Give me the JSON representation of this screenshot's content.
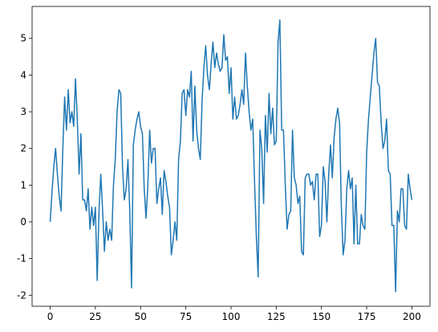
{
  "chart_data": {
    "type": "line",
    "color": "#1f77b4",
    "x": [
      0,
      1,
      2,
      3,
      4,
      5,
      6,
      7,
      8,
      9,
      10,
      11,
      12,
      13,
      14,
      15,
      16,
      17,
      18,
      19,
      20,
      21,
      22,
      23,
      24,
      25,
      26,
      27,
      28,
      29,
      30,
      31,
      32,
      33,
      34,
      35,
      36,
      37,
      38,
      39,
      40,
      41,
      42,
      43,
      44,
      45,
      46,
      47,
      48,
      49,
      50,
      51,
      52,
      53,
      54,
      55,
      56,
      57,
      58,
      59,
      60,
      61,
      62,
      63,
      64,
      65,
      66,
      67,
      68,
      69,
      70,
      71,
      72,
      73,
      74,
      75,
      76,
      77,
      78,
      79,
      80,
      81,
      82,
      83,
      84,
      85,
      86,
      87,
      88,
      89,
      90,
      91,
      92,
      93,
      94,
      95,
      96,
      97,
      98,
      99,
      100,
      101,
      102,
      103,
      104,
      105,
      106,
      107,
      108,
      109,
      110,
      111,
      112,
      113,
      114,
      115,
      116,
      117,
      118,
      119,
      120,
      121,
      122,
      123,
      124,
      125,
      126,
      127,
      128,
      129,
      130,
      131,
      132,
      133,
      134,
      135,
      136,
      137,
      138,
      139,
      140,
      141,
      142,
      143,
      144,
      145,
      146,
      147,
      148,
      149,
      150,
      151,
      152,
      153,
      154,
      155,
      156,
      157,
      158,
      159,
      160,
      161,
      162,
      163,
      164,
      165,
      166,
      167,
      168,
      169,
      170,
      171,
      172,
      173,
      174,
      175,
      176,
      177,
      178,
      179,
      180,
      181,
      182,
      183,
      184,
      185,
      186,
      187,
      188,
      189,
      190,
      191,
      192,
      193,
      194,
      195,
      196,
      197,
      198,
      199,
      200
    ],
    "values": [
      0,
      0.8,
      1.5,
      2.0,
      1.3,
      0.7,
      0.3,
      2.0,
      3.4,
      2.5,
      3.6,
      2.7,
      3.0,
      2.6,
      3.9,
      2.8,
      1.3,
      2.4,
      0.6,
      0.6,
      0.3,
      0.9,
      -0.2,
      0.4,
      -0.1,
      0.4,
      -1.6,
      0.3,
      1.3,
      0.3,
      -0.8,
      0.0,
      -0.5,
      -0.2,
      -0.5,
      1.0,
      1.7,
      3.0,
      3.6,
      3.5,
      1.5,
      0.6,
      0.9,
      1.7,
      0.3,
      -1.8,
      2.1,
      2.5,
      2.8,
      3.0,
      2.6,
      2.4,
      0.9,
      0.1,
      1.0,
      2.5,
      1.6,
      2.0,
      2.0,
      0.5,
      0.9,
      1.2,
      0.2,
      1.4,
      1.1,
      0.7,
      0.4,
      -0.9,
      -0.5,
      0.0,
      -0.5,
      1.7,
      2.2,
      3.5,
      3.6,
      2.9,
      3.6,
      3.4,
      4.1,
      2.2,
      3.7,
      2.5,
      2.0,
      1.7,
      3.3,
      4.2,
      4.8,
      4.0,
      3.6,
      4.3,
      4.9,
      4.2,
      4.6,
      4.3,
      4.1,
      4.2,
      5.1,
      4.4,
      4.5,
      3.5,
      4.2,
      2.8,
      3.4,
      2.8,
      2.9,
      3.2,
      3.6,
      3.2,
      4.6,
      3.7,
      3.0,
      2.5,
      2.8,
      1.1,
      -0.4,
      -1.5,
      2.5,
      2.0,
      0.5,
      2.9,
      1.9,
      3.5,
      2.4,
      3.1,
      2.1,
      2.2,
      4.9,
      5.5,
      2.5,
      2.5,
      1.0,
      -0.2,
      0.2,
      0.3,
      2.5,
      1.2,
      1.0,
      0.5,
      0.7,
      -0.8,
      -0.9,
      1.2,
      1.3,
      1.3,
      1.0,
      1.1,
      0.6,
      1.3,
      1.3,
      -0.4,
      -0.1,
      1.5,
      1.1,
      0.0,
      1.3,
      2.1,
      1.2,
      2.3,
      2.8,
      3.1,
      2.7,
      0.4,
      -0.9,
      -0.5,
      0.9,
      1.4,
      0.9,
      1.2,
      -0.6,
      1.0,
      -0.6,
      -0.6,
      0.2,
      -0.1,
      -0.2,
      1.9,
      2.8,
      3.4,
      4.0,
      4.6,
      5.0,
      3.8,
      3.7,
      2.7,
      2.0,
      2.2,
      2.8,
      1.4,
      1.3,
      -0.1,
      -0.1,
      -1.9,
      0.3,
      0.0,
      0.9,
      0.9,
      -0.1,
      -0.2,
      1.3,
      0.9,
      0.6
    ],
    "xlim": [
      -10,
      210
    ],
    "xticks": [
      0,
      25,
      50,
      75,
      100,
      125,
      150,
      175,
      200
    ],
    "ylim": [
      -2.3,
      5.87
    ],
    "yticks": [
      -2,
      -1,
      0,
      1,
      2,
      3,
      4,
      5
    ]
  }
}
